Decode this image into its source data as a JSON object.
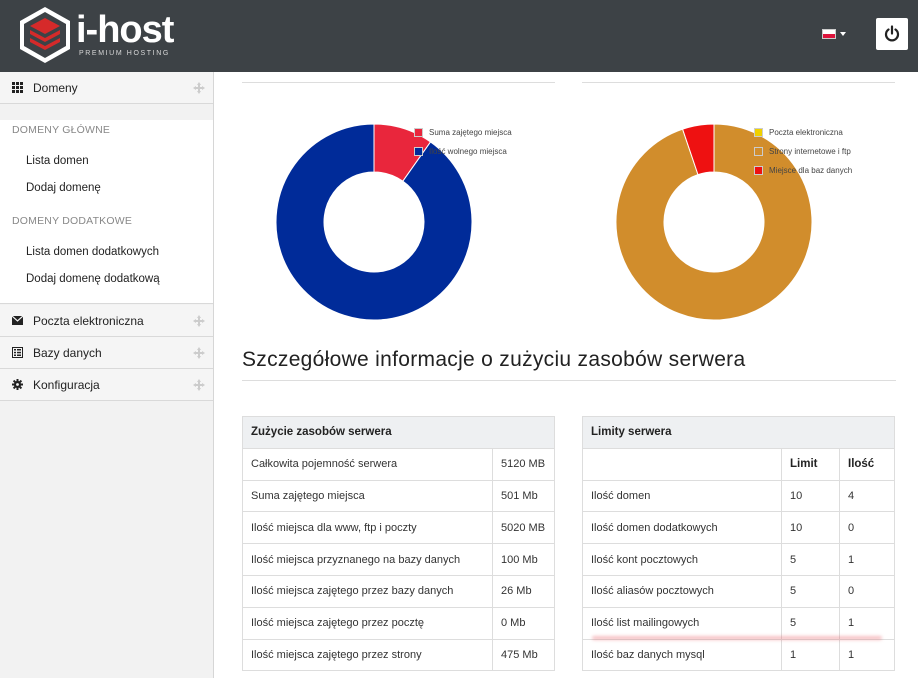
{
  "header": {
    "brand_name": "i-host",
    "brand_tagline": "PREMIUM HOSTING",
    "language_icon": "poland-flag-icon",
    "logout_icon": "power-icon"
  },
  "sidebar": {
    "domains": {
      "label": "Domeny",
      "groups": [
        {
          "title": "DOMENY GŁÓWNE",
          "items": [
            "Lista domen",
            "Dodaj domenę"
          ]
        },
        {
          "title": "DOMENY DODATKOWE",
          "items": [
            "Lista domen dodatkowych",
            "Dodaj domenę dodatkową"
          ]
        }
      ]
    },
    "sections": [
      {
        "label": "Poczta elektroniczna",
        "icon": "envelope-icon"
      },
      {
        "label": "Bazy danych",
        "icon": "list-icon"
      },
      {
        "label": "Konfiguracja",
        "icon": "gear-icon"
      }
    ]
  },
  "chart_data": [
    {
      "type": "pie",
      "labels": [
        "Suma zajętego miejsca",
        "Ilość wolnego miejsca"
      ],
      "values": [
        501,
        4619
      ],
      "colors": [
        "#e9263c",
        "#002b99"
      ],
      "donut": true
    },
    {
      "type": "pie",
      "labels": [
        "Poczta elektroniczna",
        "Strony internetowe i ftp",
        "Miejsce dla baz danych"
      ],
      "values": [
        0,
        475,
        26
      ],
      "colors": [
        "#f0d000",
        "#d18d2c",
        "#ee1111"
      ],
      "donut": true
    }
  ],
  "main": {
    "section_title": "Szczegółowe informacje o zużyciu zasobów serwera",
    "usage_table": {
      "caption": "Zużycie zasobów serwera",
      "rows": [
        [
          "Całkowita pojemność serwera",
          "5120 MB"
        ],
        [
          "Suma zajętego miejsca",
          "501 Mb"
        ],
        [
          "Ilość miejsca dla www, ftp i poczty",
          "5020 MB"
        ],
        [
          "Ilość miejsca przyznanego na bazy danych",
          "100 Mb"
        ],
        [
          "Ilość miejsca zajętego przez bazy danych",
          "26 Mb"
        ],
        [
          "Ilość miejsca zajętego przez pocztę",
          "0 Mb"
        ],
        [
          "Ilość miejsca zajętego przez strony",
          "475 Mb"
        ]
      ]
    },
    "limits_table": {
      "caption": "Limity serwera",
      "columns": [
        "",
        "Limit",
        "Ilość"
      ],
      "rows": [
        [
          "Ilość domen",
          "10",
          "4"
        ],
        [
          "Ilość domen dodatkowych",
          "10",
          "0"
        ],
        [
          "Ilość kont pocztowych",
          "5",
          "1"
        ],
        [
          "Ilość aliasów pocztowych",
          "5",
          "0"
        ],
        [
          "Ilość list mailingowych",
          "5",
          "1"
        ],
        [
          "Ilość baz danych mysql",
          "1",
          "1"
        ]
      ]
    }
  }
}
